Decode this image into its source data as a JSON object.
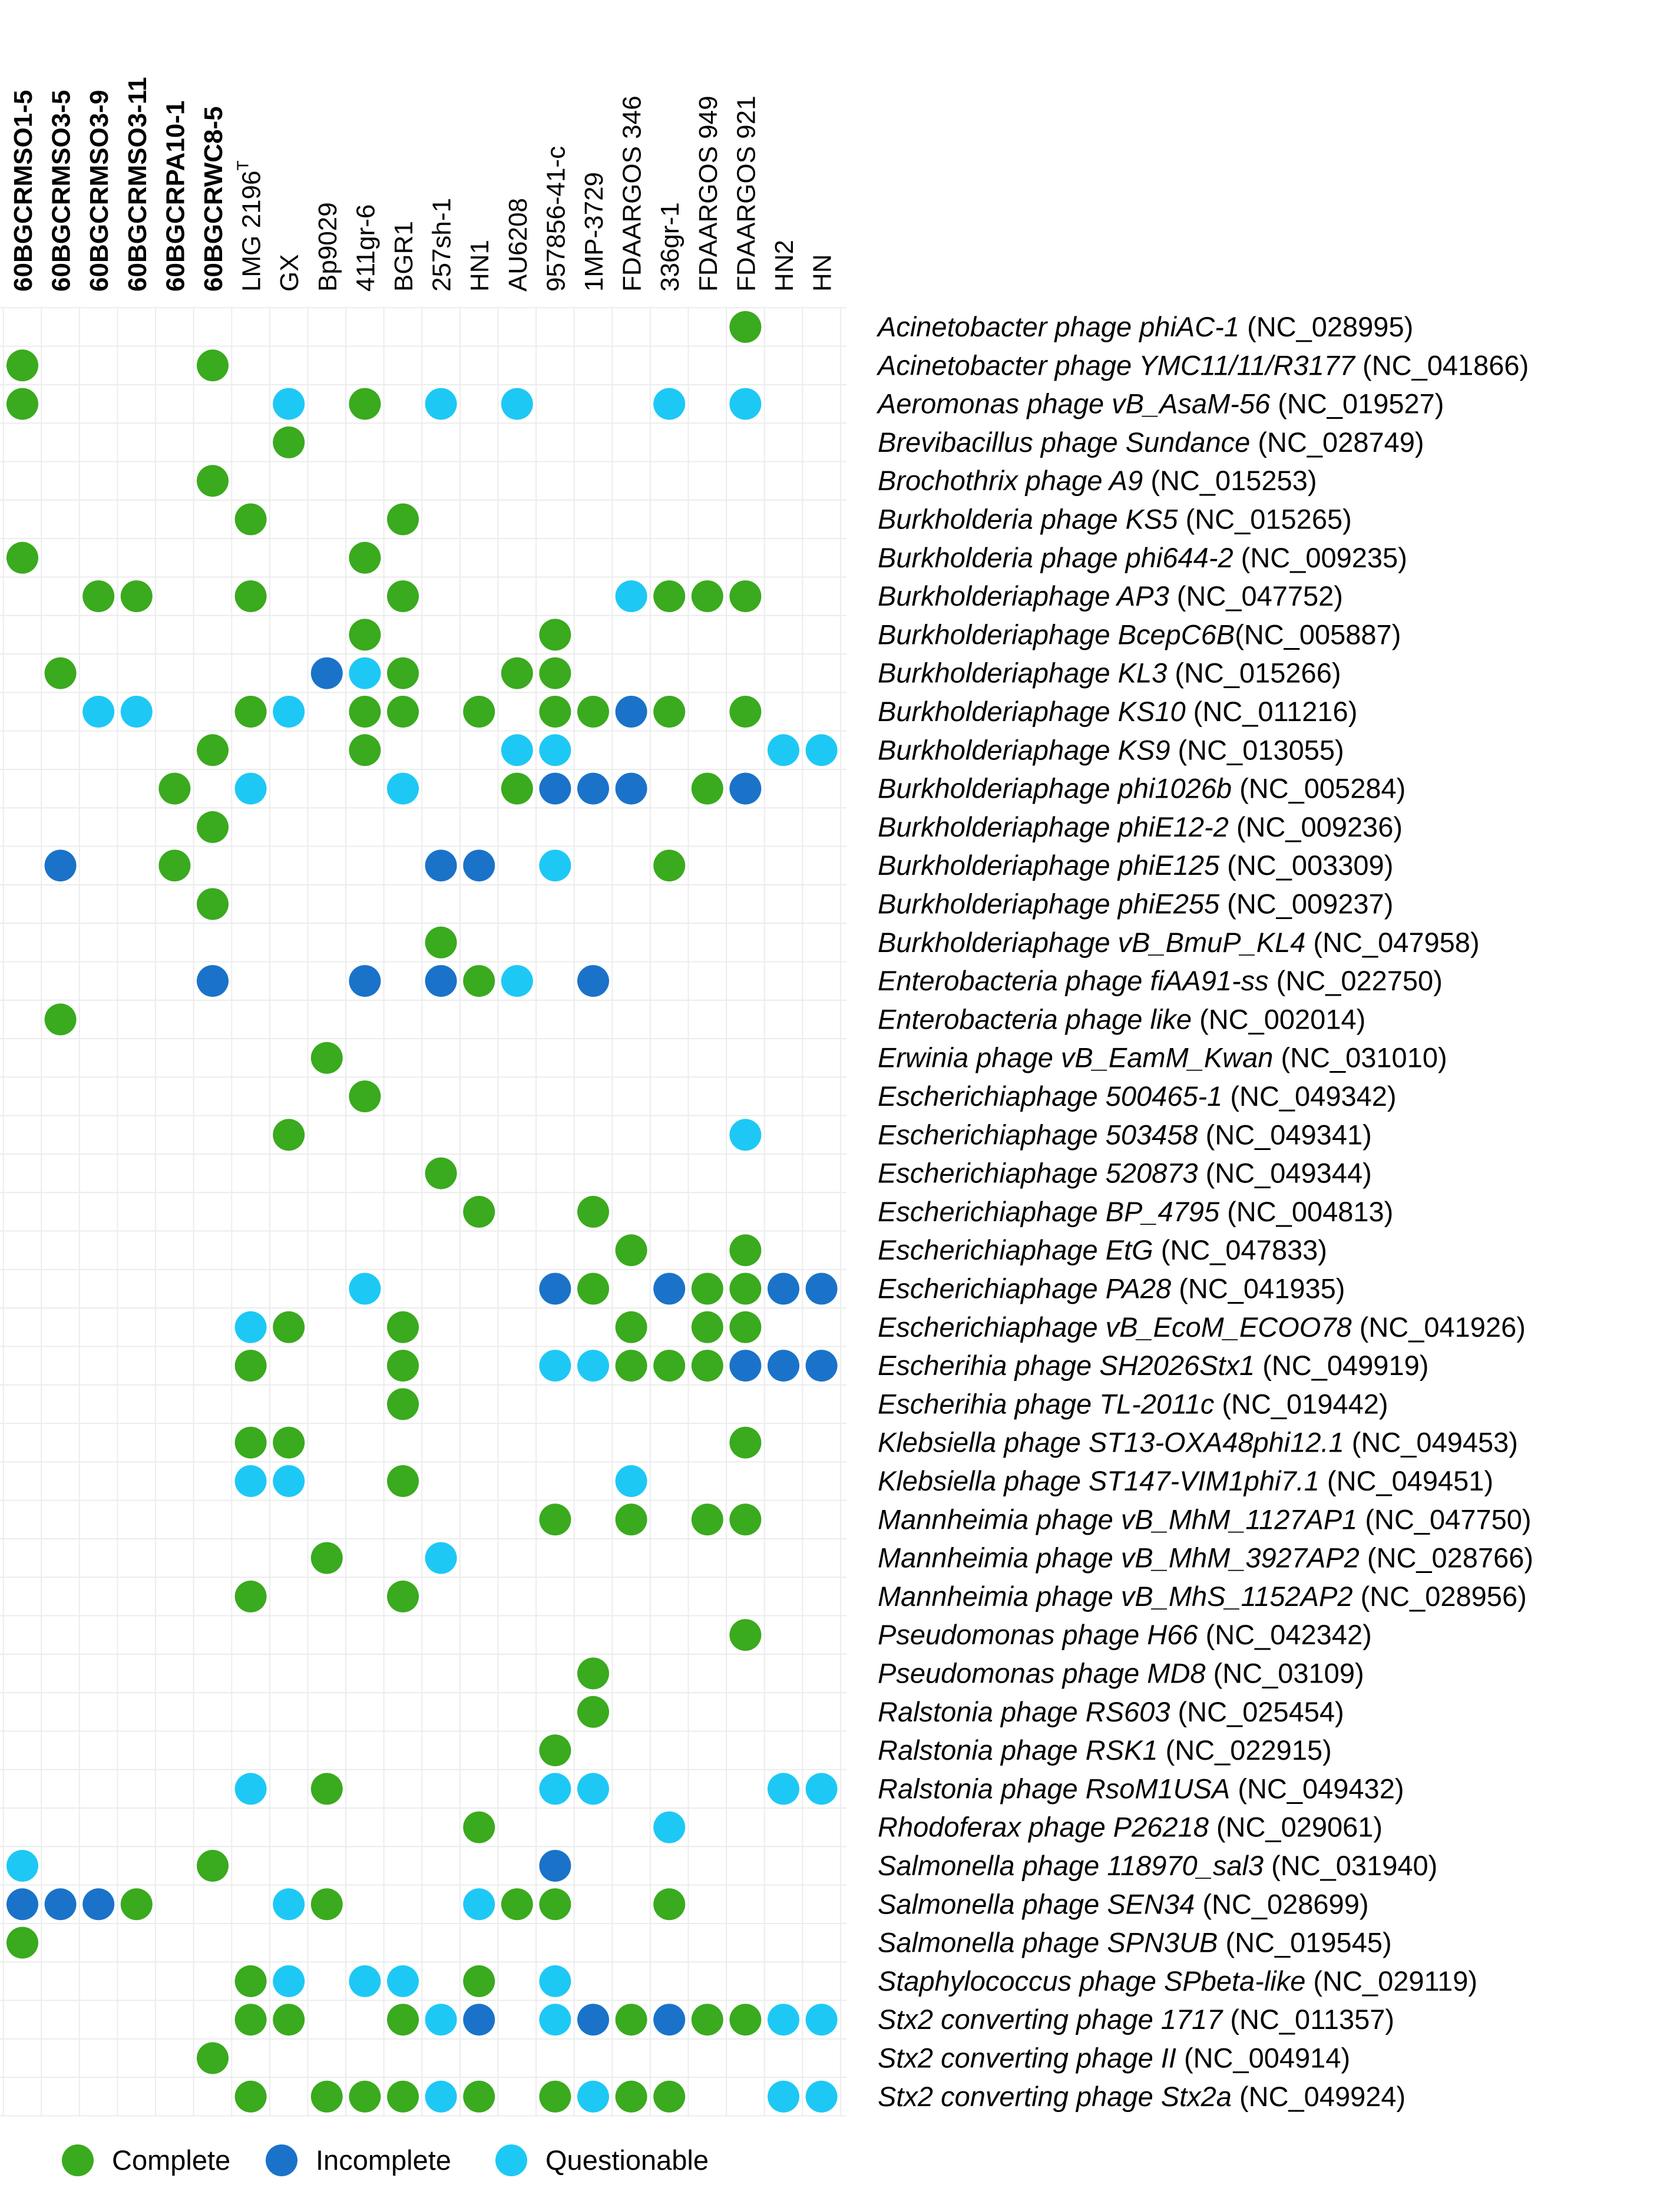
{
  "chart_data": {
    "type": "heatmap",
    "title": "",
    "xlabel": "",
    "ylabel": "",
    "columns": [
      {
        "label": "60BGCRMSO1-5",
        "bold": true
      },
      {
        "label": "60BGCRMSO3-5",
        "bold": true
      },
      {
        "label": "60BGCRMSO3-9",
        "bold": true
      },
      {
        "label": "60BGCRMSO3-11",
        "bold": true
      },
      {
        "label": "60BGCRPA10-1",
        "bold": true
      },
      {
        "label": "60BGCRWC8-5",
        "bold": true
      },
      {
        "label": "LMG 2196",
        "superscript": "T",
        "bold": false
      },
      {
        "label": "GX",
        "bold": false
      },
      {
        "label": "Bp9029",
        "bold": false
      },
      {
        "label": "411gr-6",
        "bold": false
      },
      {
        "label": "BGR1",
        "bold": false
      },
      {
        "label": "257sh-1",
        "bold": false
      },
      {
        "label": "HN1",
        "bold": false
      },
      {
        "label": "AU6208",
        "bold": false
      },
      {
        "label": "957856-41-c",
        "bold": false
      },
      {
        "label": "1MP-3729",
        "bold": false
      },
      {
        "label": "FDAARGOS 346",
        "bold": false
      },
      {
        "label": "336gr-1",
        "bold": false
      },
      {
        "label": "FDAARGOS 949",
        "bold": false
      },
      {
        "label": "FDAARGOS 921",
        "bold": false
      },
      {
        "label": "HN2",
        "bold": false
      },
      {
        "label": "HN",
        "bold": false
      }
    ],
    "rows": [
      {
        "name": "Acinetobacter phage phiAC-1",
        "acc": " (NC_028995)"
      },
      {
        "name": "Acinetobacter phage YMC11/11/R3177",
        "acc": " (NC_041866)"
      },
      {
        "name": "Aeromonas phage vB_AsaM-56",
        "acc": " (NC_019527)"
      },
      {
        "name": "Brevibacillus phage Sundance",
        "acc": " (NC_028749)"
      },
      {
        "name": "Brochothrix phage A9",
        "acc": " (NC_015253)"
      },
      {
        "name": "Burkholderia phage KS5",
        "acc": " (NC_015265)"
      },
      {
        "name": "Burkholderia phage phi644-2",
        "acc": " (NC_009235)"
      },
      {
        "name": "Burkholderiaphage AP3",
        "acc": " (NC_047752)"
      },
      {
        "name": "Burkholderiaphage BcepC6B",
        "acc": "(NC_005887)"
      },
      {
        "name": "Burkholderiaphage KL3",
        "acc": " (NC_015266)"
      },
      {
        "name": "Burkholderiaphage KS10",
        "acc": " (NC_011216)"
      },
      {
        "name": "Burkholderiaphage KS9",
        "acc": " (NC_013055)"
      },
      {
        "name": "Burkholderiaphage phi1026b",
        "acc": " (NC_005284)"
      },
      {
        "name": "Burkholderiaphage phiE12-2",
        "acc": " (NC_009236)"
      },
      {
        "name": "Burkholderiaphage phiE125",
        "acc": " (NC_003309)"
      },
      {
        "name": "Burkholderiaphage phiE255",
        "acc": " (NC_009237)"
      },
      {
        "name": "Burkholderiaphage vB_BmuP_KL4",
        "acc": " (NC_047958)"
      },
      {
        "name": "Enterobacteria phage fiAA91-ss",
        "acc": " (NC_022750)"
      },
      {
        "name": "Enterobacteria phage like",
        "acc": " (NC_002014)"
      },
      {
        "name": "Erwinia phage vB_EamM_Kwan",
        "acc": " (NC_031010)"
      },
      {
        "name": "Escherichiaphage 500465-1",
        "acc": " (NC_049342)"
      },
      {
        "name": "Escherichiaphage 503458",
        "acc": " (NC_049341)"
      },
      {
        "name": "Escherichiaphage 520873",
        "acc": " (NC_049344)"
      },
      {
        "name": "Escherichiaphage BP_4795",
        "acc": " (NC_004813)"
      },
      {
        "name": "Escherichiaphage EtG",
        "acc": " (NC_047833)"
      },
      {
        "name": "Escherichiaphage PA28",
        "acc": " (NC_041935)"
      },
      {
        "name": "Escherichiaphage vB_EcoM_ECOO78",
        "acc": " (NC_041926)"
      },
      {
        "name": "Escherihia phage SH2026Stx1",
        "acc": " (NC_049919)"
      },
      {
        "name": "Escherihia phage TL-2011c",
        "acc": " (NC_019442)"
      },
      {
        "name": "Klebsiella phage ST13-OXA48phi12.1",
        "acc": " (NC_049453)"
      },
      {
        "name": "Klebsiella phage ST147-VIM1phi7.1",
        "acc": " (NC_049451)"
      },
      {
        "name": "Mannheimia phage vB_MhM_1127AP1",
        "acc": " (NC_047750)"
      },
      {
        "name": "Mannheimia phage vB_MhM_3927AP2",
        "acc": " (NC_028766)"
      },
      {
        "name": "Mannheimia phage vB_MhS_1152AP2",
        "acc": " (NC_028956)"
      },
      {
        "name": "Pseudomonas phage H66",
        "acc": " (NC_042342)"
      },
      {
        "name": "Pseudomonas phage MD8",
        "acc": " (NC_03109)"
      },
      {
        "name": "Ralstonia phage RS603",
        "acc": " (NC_025454)"
      },
      {
        "name": "Ralstonia phage RSK1",
        "acc": " (NC_022915)"
      },
      {
        "name": "Ralstonia phage RsoM1USA",
        "acc": " (NC_049432)"
      },
      {
        "name": "Rhodoferax phage P26218",
        "acc": " (NC_029061)"
      },
      {
        "name": "Salmonella phage 118970_sal3",
        "acc": " (NC_031940)"
      },
      {
        "name": "Salmonella phage SEN34",
        "acc": " (NC_028699)"
      },
      {
        "name": "Salmonella phage SPN3UB",
        "acc": " (NC_019545)"
      },
      {
        "name": "Staphylococcus phage SPbeta-like",
        "acc": " (NC_029119)"
      },
      {
        "name": "Stx2 converting phage 1717",
        "acc": " (NC_011357)"
      },
      {
        "name": "Stx2 converting phage II",
        "acc": " (NC_004914)"
      },
      {
        "name": "Stx2 converting phage Stx2a",
        "acc": " (NC_049924)"
      }
    ],
    "categories": [
      {
        "code": "C",
        "label": "Complete",
        "color": "#3aaa1e"
      },
      {
        "code": "I",
        "label": "Incomplete",
        "color": "#1a73c9"
      },
      {
        "code": "Q",
        "label": "Questionable",
        "color": "#1ec8f5"
      }
    ],
    "legend_position": "bottom-left",
    "grid": true,
    "grid_color": "#ececec",
    "matrix": [
      "...................C..",
      "C....C................",
      "C......Q.C.Q.Q...Q.Q..",
      ".......C..............",
      ".....C................",
      "......C...C...........",
      "C........C............",
      "..CC..C...C.....QCCC..",
      ".........C....C.......",
      ".C......IQC..CC.......",
      "..QQ..CQ.CC.C.CCIC.C..",
      ".....C...C...QQ.....QQ",
      "....C.Q...Q..CIII.CI..",
      ".....C................",
      ".I..C......II.Q..C....",
      ".....C................",
      "...........C..........",
      ".....I...I.ICQ.I......",
      ".C....................",
      "........C.............",
      ".........C............",
      ".......C...........Q..",
      "...........C..........",
      "............C..C......",
      "................C..C..",
      ".........Q....IC.ICCII",
      "......QC..C.....C.CC..",
      "......C...C...QQCCCIII",
      "..........C...........",
      "......CC...........C..",
      "......QQ..C.....Q.....",
      "..............C.C.CC..",
      "........C..Q..........",
      "......C...C...........",
      "...................C..",
      "...............C......",
      "...............C......",
      "..............C.......",
      "......Q.C.....QQ....QQ",
      "............C....Q....",
      "Q....C........I.......",
      "IIIC...QC...QCC..C....",
      "C.....................",
      "......CQ.QQ.C.Q.......",
      "......CC..CQI.QICICCQQ",
      ".....C................",
      "......C.CCCQC.CQCC..QQ"
    ]
  }
}
